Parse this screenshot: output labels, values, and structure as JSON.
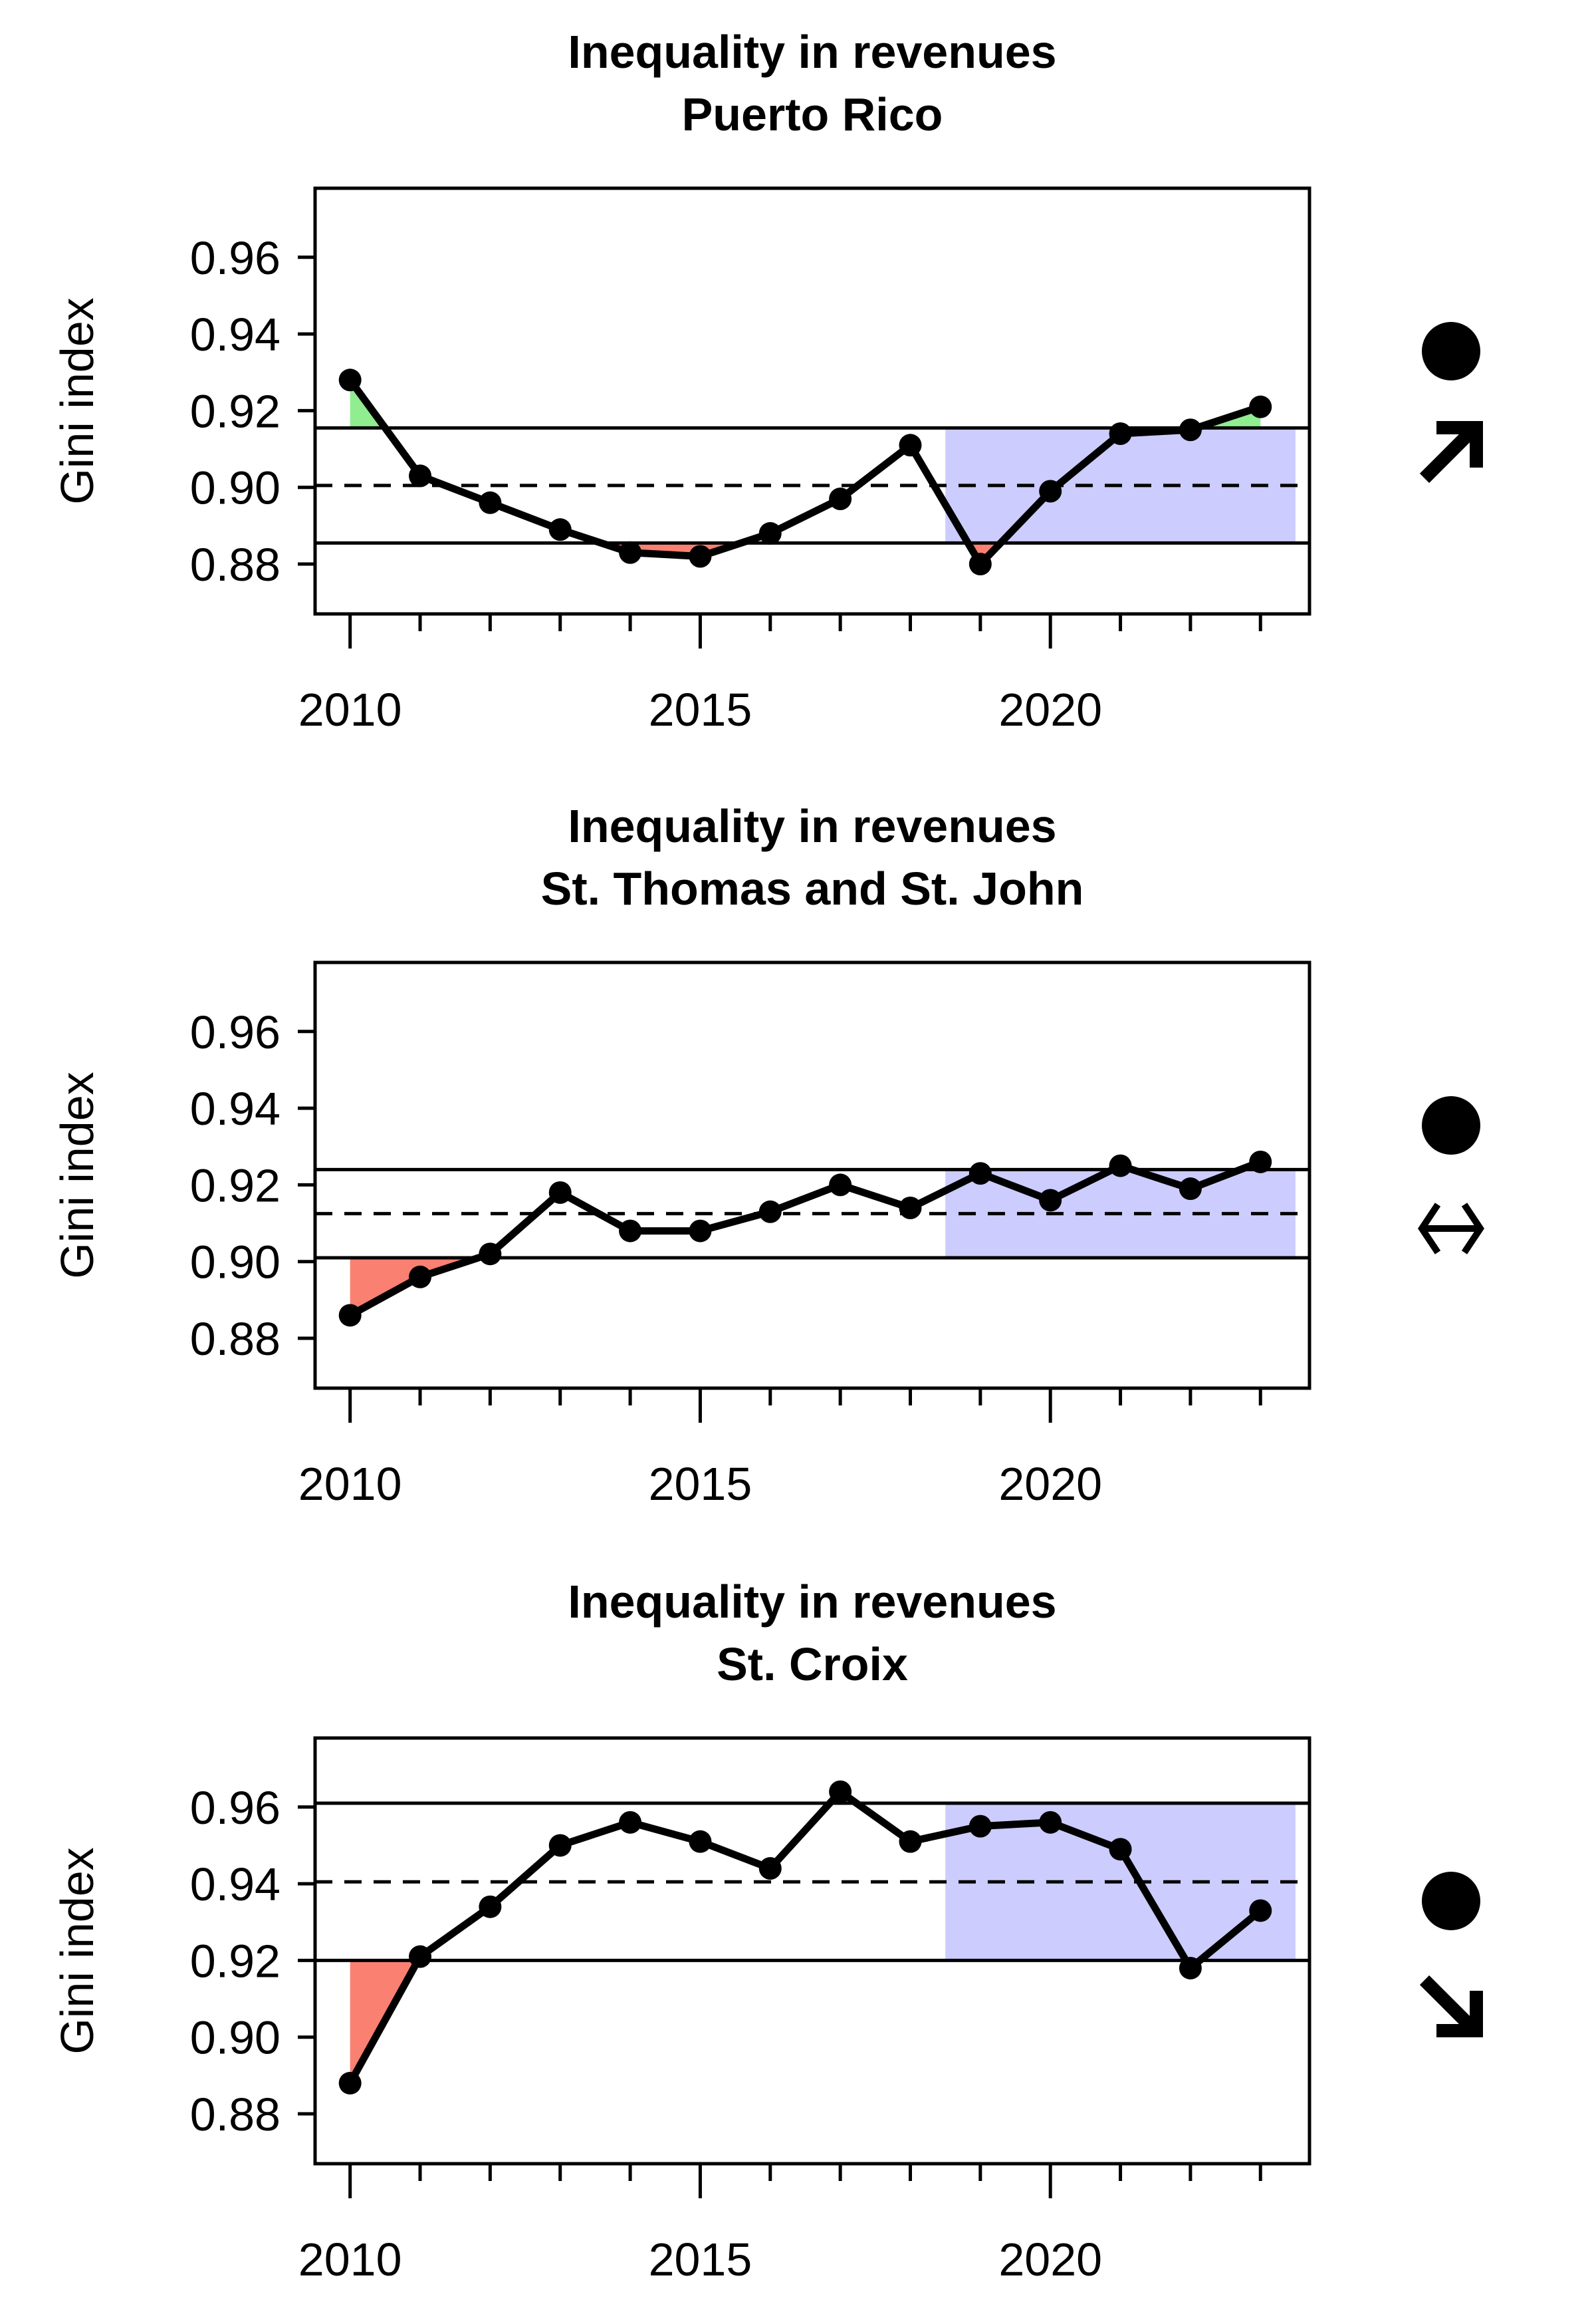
{
  "chart_data": [
    {
      "type": "line",
      "title": "Inequality in revenues",
      "subtitle": "Puerto Rico",
      "xlabel": "",
      "ylabel": "Gini index",
      "x": [
        2010,
        2011,
        2012,
        2013,
        2014,
        2015,
        2016,
        2017,
        2018,
        2019,
        2020,
        2021,
        2022,
        2023
      ],
      "values": [
        0.928,
        0.903,
        0.896,
        0.889,
        0.883,
        0.882,
        0.888,
        0.897,
        0.911,
        0.88,
        0.899,
        0.914,
        0.915,
        0.921
      ],
      "mean": 0.9005,
      "upper": 0.9155,
      "lower": 0.8855,
      "recent_window": [
        2018.5,
        2023.5
      ],
      "xlim": [
        2009.5,
        2023.7
      ],
      "ylim": [
        0.867,
        0.978
      ],
      "xticks": [
        2010,
        2015,
        2020
      ],
      "yticks": [
        0.88,
        0.9,
        0.92,
        0.94,
        0.96
      ],
      "ytick_labels": [
        "0.88",
        "0.90",
        "0.92",
        "0.94",
        "0.96"
      ],
      "xtick_labels": [
        "2010",
        "2015",
        "2020"
      ],
      "status_symbol": "filled-circle",
      "trend_symbol": "arrow-up-right",
      "colors": {
        "above": "#90ee90",
        "below": "#fa8072",
        "recent": "#ccccff",
        "line": "#000000"
      },
      "grid": false
    },
    {
      "type": "line",
      "title": "Inequality in revenues",
      "subtitle": "St. Thomas and St. John",
      "xlabel": "",
      "ylabel": "Gini index",
      "x": [
        2010,
        2011,
        2012,
        2013,
        2014,
        2015,
        2016,
        2017,
        2018,
        2019,
        2020,
        2021,
        2022,
        2023
      ],
      "values": [
        0.886,
        0.896,
        0.902,
        0.918,
        0.908,
        0.908,
        0.913,
        0.92,
        0.914,
        0.923,
        0.916,
        0.925,
        0.919,
        0.926
      ],
      "mean": 0.9125,
      "upper": 0.924,
      "lower": 0.901,
      "recent_window": [
        2018.5,
        2023.5
      ],
      "xlim": [
        2009.5,
        2023.7
      ],
      "ylim": [
        0.867,
        0.978
      ],
      "xticks": [
        2010,
        2015,
        2020
      ],
      "yticks": [
        0.88,
        0.9,
        0.92,
        0.94,
        0.96
      ],
      "ytick_labels": [
        "0.88",
        "0.90",
        "0.92",
        "0.94",
        "0.96"
      ],
      "xtick_labels": [
        "2010",
        "2015",
        "2020"
      ],
      "status_symbol": "filled-circle",
      "trend_symbol": "double-arrow-horizontal",
      "colors": {
        "above": "#90ee90",
        "below": "#fa8072",
        "recent": "#ccccff",
        "line": "#000000"
      },
      "grid": false
    },
    {
      "type": "line",
      "title": "Inequality in revenues",
      "subtitle": "St. Croix",
      "xlabel": "",
      "ylabel": "Gini index",
      "x": [
        2010,
        2011,
        2012,
        2013,
        2014,
        2015,
        2016,
        2017,
        2018,
        2019,
        2020,
        2021,
        2022,
        2023
      ],
      "values": [
        0.888,
        0.921,
        0.934,
        0.95,
        0.956,
        0.951,
        0.944,
        0.964,
        0.951,
        0.955,
        0.956,
        0.949,
        0.918,
        0.933
      ],
      "mean": 0.9405,
      "upper": 0.961,
      "lower": 0.92,
      "recent_window": [
        2018.5,
        2023.5
      ],
      "xlim": [
        2009.5,
        2023.7
      ],
      "ylim": [
        0.867,
        0.978
      ],
      "xticks": [
        2010,
        2015,
        2020
      ],
      "yticks": [
        0.88,
        0.9,
        0.92,
        0.94,
        0.96
      ],
      "ytick_labels": [
        "0.88",
        "0.90",
        "0.92",
        "0.94",
        "0.96"
      ],
      "xtick_labels": [
        "2010",
        "2015",
        "2020"
      ],
      "status_symbol": "filled-circle",
      "trend_symbol": "arrow-down-right",
      "colors": {
        "above": "#90ee90",
        "below": "#fa8072",
        "recent": "#ccccff",
        "line": "#000000"
      },
      "grid": false
    }
  ]
}
